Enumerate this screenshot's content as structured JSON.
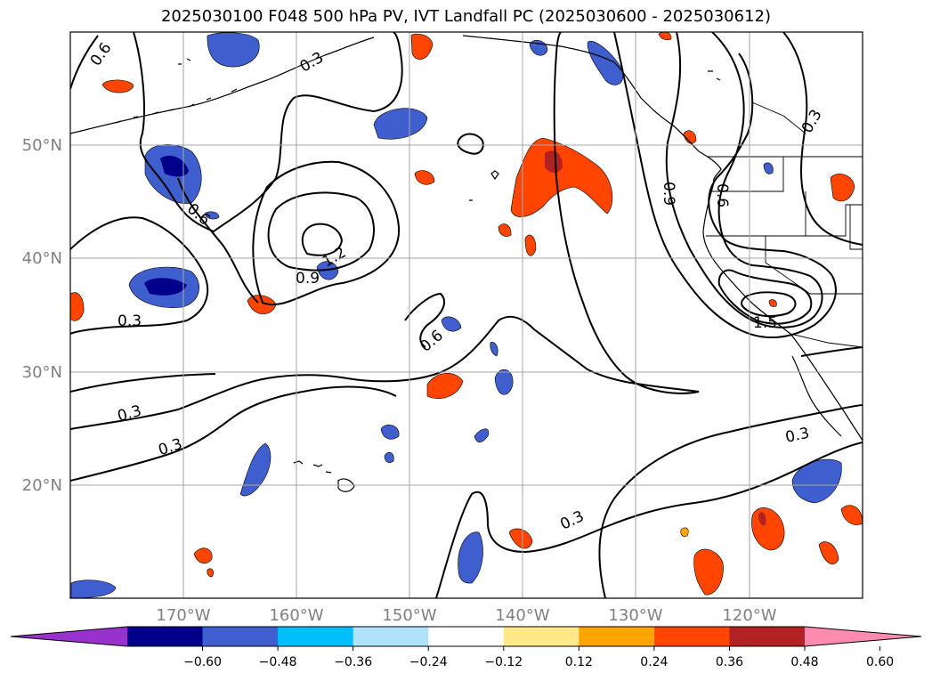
{
  "title": "2025030100 F048 500 hPa PV, IVT Landfall PC (2025030600 - 2025030612)",
  "map": {
    "lon_range": [
      -180,
      -110
    ],
    "lat_range": [
      10,
      60
    ],
    "gridlines": true,
    "lon_ticks": [
      "170°W",
      "160°W",
      "150°W",
      "140°W",
      "130°W",
      "120°W"
    ],
    "lat_ticks": [
      "50°N",
      "40°N",
      "30°N",
      "20°N"
    ]
  },
  "contours": {
    "color": "#000000",
    "labels": [
      "0.6",
      "0.3",
      "0.6",
      "0.9",
      "1.2",
      "0.3",
      "0.3",
      "0.3",
      "0.6",
      "0.9",
      "0.6",
      "1.5",
      "0.3",
      "0.3",
      "0.3"
    ]
  },
  "colorbar": {
    "ticks": [
      "−0.60",
      "−0.48",
      "−0.36",
      "−0.24",
      "−0.12",
      "0.12",
      "0.24",
      "0.36",
      "0.48",
      "0.60"
    ],
    "colors": [
      "#9932cc",
      "#00008b",
      "#3f5fcf",
      "#00bfff",
      "#aee3fa",
      "#ffffff",
      "#ffe88a",
      "#ffa500",
      "#ff4500",
      "#b22222",
      "#ff8cb0"
    ]
  }
}
